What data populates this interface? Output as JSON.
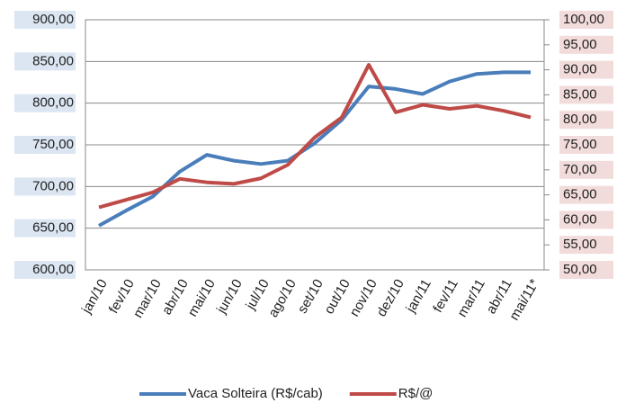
{
  "chart_data": {
    "type": "line",
    "categories": [
      "jan/10",
      "fev/10",
      "mar/10",
      "abr/10",
      "mai/10",
      "jun/10",
      "jul/10",
      "ago/10",
      "set/10",
      "out/10",
      "nov/10",
      "dez/10",
      "jan/11",
      "fev/11",
      "mar/11",
      "abr/11",
      "mai/11*"
    ],
    "series": [
      {
        "name": "Vaca Solteira (R$/cab)",
        "color": "#4a7ebb",
        "values": [
          653,
          671,
          688,
          718,
          738,
          731,
          727,
          731,
          752,
          780,
          820,
          817,
          811,
          826,
          835,
          837,
          837
        ]
      },
      {
        "name": "R$/@",
        "color": "#be4b48",
        "axis": "y2",
        "values": [
          62.5,
          64,
          65.5,
          68.2,
          67.5,
          67.2,
          68.3,
          71,
          76.5,
          80.5,
          91,
          81.5,
          83,
          82.2,
          82.8,
          81.8,
          80.5
        ]
      }
    ],
    "ylim": [
      600,
      900
    ],
    "yticks": [
      {
        "value": 600,
        "label": "600,00"
      },
      {
        "value": 650,
        "label": "650,00"
      },
      {
        "value": 700,
        "label": "700,00"
      },
      {
        "value": 750,
        "label": "750,00"
      },
      {
        "value": 800,
        "label": "800,00"
      },
      {
        "value": 850,
        "label": "850,00"
      },
      {
        "value": 900,
        "label": "900,00"
      }
    ],
    "y2lim": [
      50,
      100
    ],
    "y2ticks": [
      {
        "value": 50,
        "label": "50,00"
      },
      {
        "value": 55,
        "label": "55,00"
      },
      {
        "value": 60,
        "label": "60,00"
      },
      {
        "value": 65,
        "label": "65,00"
      },
      {
        "value": 70,
        "label": "70,00"
      },
      {
        "value": 75,
        "label": "75,00"
      },
      {
        "value": 80,
        "label": "80,00"
      },
      {
        "value": 85,
        "label": "85,00"
      },
      {
        "value": 90,
        "label": "90,00"
      },
      {
        "value": 95,
        "label": "95,00"
      },
      {
        "value": 100,
        "label": "100,00"
      }
    ],
    "grid": true
  }
}
